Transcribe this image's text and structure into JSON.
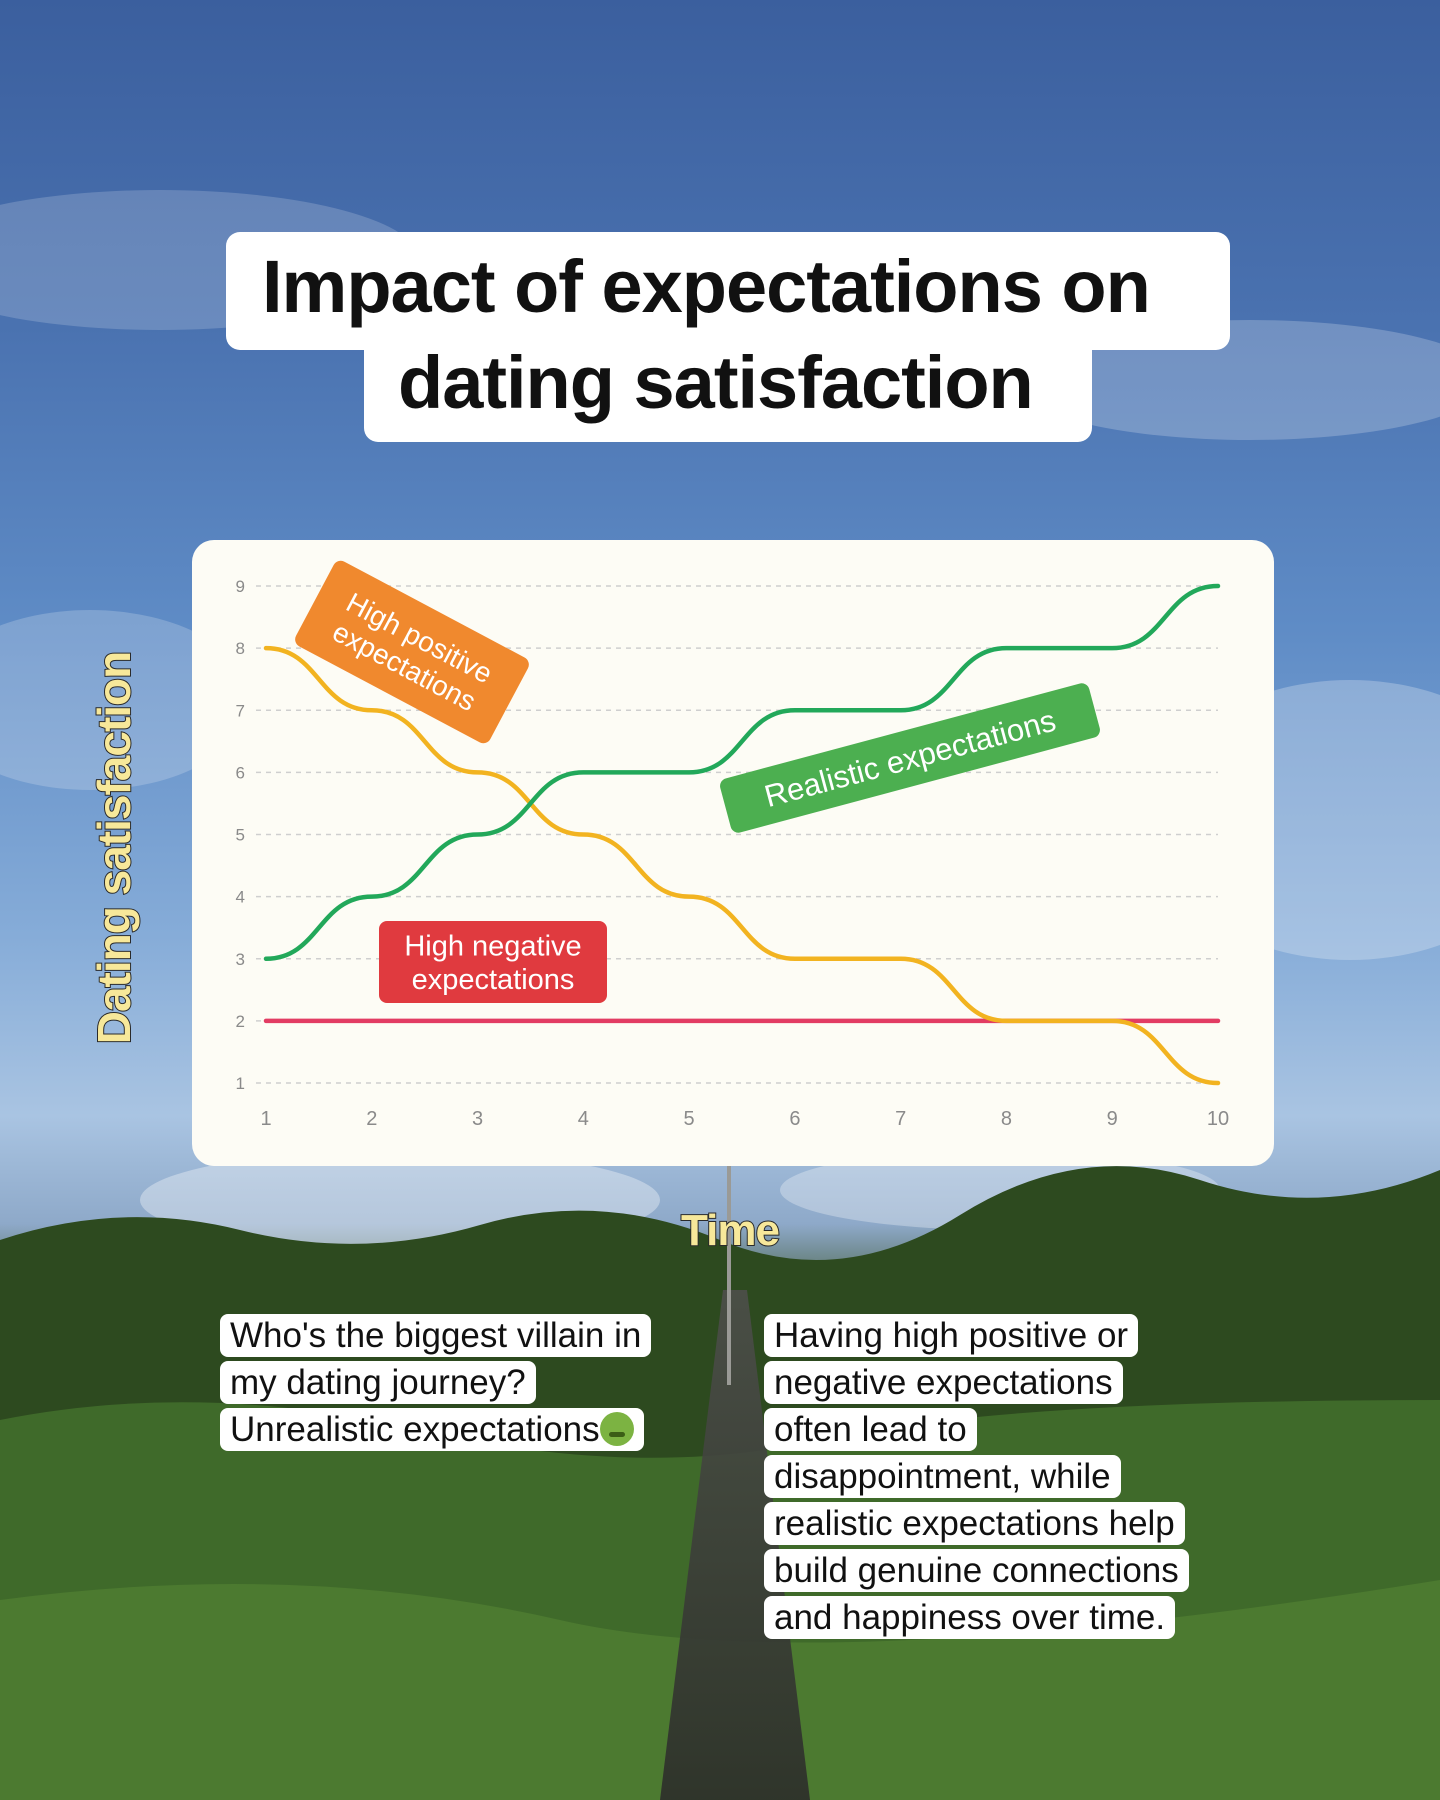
{
  "title": {
    "line1": "Impact of expectations on",
    "line2": "dating satisfaction"
  },
  "axes": {
    "ylabel": "Dating satisfaction",
    "xlabel": "Time"
  },
  "captions": {
    "left": {
      "line1": "Who's the biggest villain in",
      "line2": "my dating journey?",
      "line3": "Unrealistic expectations",
      "emoji": "nauseated-face-icon"
    },
    "right": {
      "line1": "Having high positive or",
      "line2": "negative expectations",
      "line3": "often lead to",
      "line4": "disappointment, while",
      "line5": "realistic expectations help",
      "line6": "build genuine connections",
      "line7": "and happiness over time."
    }
  },
  "chart_data": {
    "type": "line",
    "title": "Impact of expectations on dating satisfaction",
    "xlabel": "Time",
    "ylabel": "Dating satisfaction",
    "x": [
      1,
      2,
      3,
      4,
      5,
      6,
      7,
      8,
      9,
      10
    ],
    "xlim": [
      1,
      10
    ],
    "ylim": [
      1,
      9
    ],
    "yticks": [
      1,
      2,
      3,
      4,
      5,
      6,
      7,
      8,
      9
    ],
    "grid": true,
    "series": [
      {
        "name": "High positive expectations",
        "color": "#f2b320",
        "label_bg": "#f0892e",
        "values": [
          8,
          7,
          6,
          5,
          4,
          3,
          3,
          2,
          2,
          1
        ]
      },
      {
        "name": "Realistic expectations",
        "color": "#22a85a",
        "label_bg": "#4caf50",
        "values": [
          3,
          4,
          5,
          6,
          6,
          7,
          7,
          8,
          8,
          9
        ]
      },
      {
        "name": "High negative expectations",
        "color": "#e23c63",
        "label_bg": "#e03a3f",
        "values": [
          2,
          2,
          2,
          2,
          2,
          2,
          2,
          2,
          2,
          2
        ]
      }
    ]
  }
}
